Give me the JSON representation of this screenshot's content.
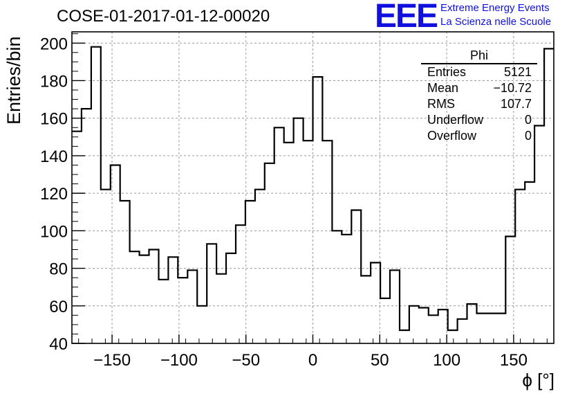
{
  "title": "COSE-01-2017-01-12-00020",
  "logo": {
    "mark": "EEE",
    "line1": "Extreme Energy Events",
    "line2": "La Scienza nelle Scuole",
    "color": "#1010e0"
  },
  "stats_box": {
    "name": "Phi",
    "rows": [
      {
        "label": "Entries",
        "value": "5121"
      },
      {
        "label": "Mean",
        "value": "−10.72"
      },
      {
        "label": "RMS",
        "value": "107.7"
      },
      {
        "label": "Underflow",
        "value": "0"
      },
      {
        "label": "Overflow",
        "value": "0"
      }
    ]
  },
  "chart_data": {
    "type": "bar",
    "style": "step-histogram",
    "ylabel": "Entries/bin",
    "xlabel": "ϕ [°]",
    "xlim": [
      -180,
      180
    ],
    "ylim": [
      40,
      206
    ],
    "bin_width": 7.2,
    "xticks": [
      -150,
      -100,
      -50,
      0,
      50,
      100,
      150
    ],
    "xtick_labels": [
      "−150",
      "−100",
      "−50",
      "0",
      "50",
      "100",
      "150"
    ],
    "yticks": [
      40,
      60,
      80,
      100,
      120,
      140,
      160,
      180,
      200
    ],
    "grid": true,
    "values": [
      153,
      165,
      198,
      122,
      135,
      116,
      89,
      87,
      90,
      74,
      86,
      75,
      79,
      60,
      93,
      77,
      88,
      103,
      116,
      122,
      136,
      155,
      147,
      160,
      148,
      182,
      148,
      100,
      98,
      111,
      76,
      83,
      64,
      79,
      47,
      60,
      59,
      55,
      58,
      47,
      53,
      61,
      56,
      56,
      56,
      97,
      122,
      126,
      156,
      197
    ]
  }
}
